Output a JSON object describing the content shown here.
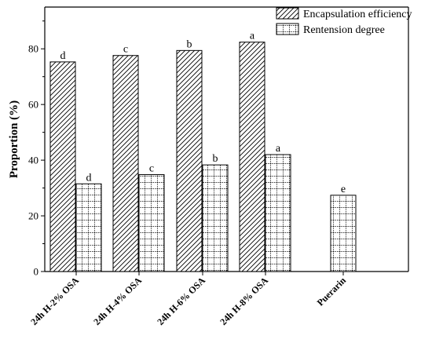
{
  "chart_data": {
    "type": "bar",
    "title": "",
    "xlabel": "",
    "ylabel": "Proportion (%)",
    "ylim": [
      0,
      95
    ],
    "yticks": [
      0,
      20,
      40,
      60,
      80
    ],
    "grid": false,
    "legend_position": "top-right",
    "categories": [
      "24h H-2% OSA",
      "24h H-4% OSA",
      "24h H-6% OSA",
      "24h H-8% OSA",
      "Puerarin"
    ],
    "series": [
      {
        "name": "Encapsulation efficiency",
        "pattern": "diagonal-hatch",
        "values": [
          75.3,
          77.6,
          79.4,
          82.4,
          null
        ],
        "labels": [
          "d",
          "c",
          "b",
          "a",
          ""
        ]
      },
      {
        "name": "Rentension degree",
        "pattern": "grid",
        "values": [
          31.5,
          34.8,
          38.3,
          42.0,
          27.4
        ],
        "labels": [
          "d",
          "c",
          "b",
          "a",
          "e"
        ]
      }
    ]
  }
}
